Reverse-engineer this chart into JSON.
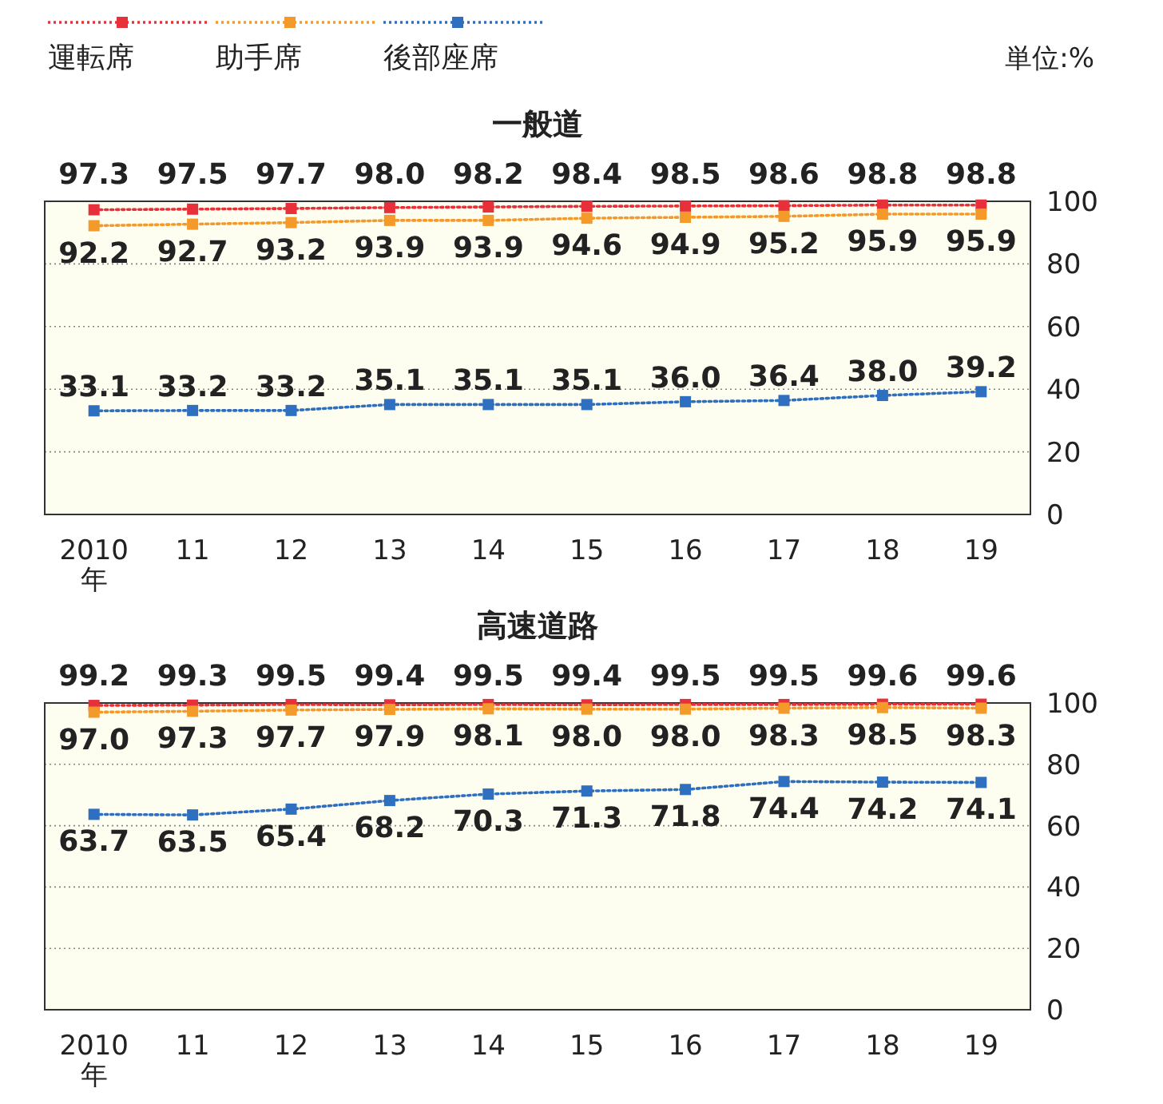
{
  "chart_data": [
    {
      "type": "line",
      "title": "一般道",
      "annotations": [
        "単位:%"
      ],
      "categories": [
        "2010\n年",
        "11",
        "12",
        "13",
        "14",
        "15",
        "16",
        "17",
        "18",
        "19"
      ],
      "ylim": [
        0,
        100
      ],
      "yticks": [
        0,
        20,
        40,
        60,
        80,
        100
      ],
      "grid": "y",
      "legend": "top left",
      "marker": "square",
      "line_style": "dotted",
      "series": [
        {
          "name": "運転席",
          "color": "#e8303a",
          "values": [
            97.3,
            97.5,
            97.7,
            98.0,
            98.2,
            98.4,
            98.5,
            98.6,
            98.8,
            98.8
          ],
          "value_labels": [
            "97.3",
            "97.5",
            "97.7",
            "98.0",
            "98.2",
            "98.4",
            "98.5",
            "98.6",
            "98.8",
            "98.8"
          ]
        },
        {
          "name": "助手席",
          "color": "#f39a2b",
          "values": [
            92.2,
            92.7,
            93.2,
            93.9,
            93.9,
            94.6,
            94.9,
            95.2,
            95.9,
            95.9
          ],
          "value_labels": [
            "92.2",
            "92.7",
            "93.2",
            "93.9",
            "93.9",
            "94.6",
            "94.9",
            "95.2",
            "95.9",
            "95.9"
          ]
        },
        {
          "name": "後部座席",
          "color": "#2f6fbf",
          "values": [
            33.1,
            33.2,
            33.2,
            35.1,
            35.1,
            35.1,
            36.0,
            36.4,
            38.0,
            39.2
          ],
          "value_labels": [
            "33.1",
            "33.2",
            "33.2",
            "35.1",
            "35.1",
            "35.1",
            "36.0",
            "36.4",
            "38.0",
            "39.2"
          ]
        }
      ]
    },
    {
      "type": "line",
      "title": "高速道路",
      "categories": [
        "2010\n年",
        "11",
        "12",
        "13",
        "14",
        "15",
        "16",
        "17",
        "18",
        "19"
      ],
      "ylim": [
        0,
        100
      ],
      "yticks": [
        0,
        20,
        40,
        60,
        80,
        100
      ],
      "grid": "y",
      "marker": "square",
      "line_style": "dotted",
      "series": [
        {
          "color": "#e8303a",
          "values": [
            99.2,
            99.3,
            99.5,
            99.4,
            99.5,
            99.4,
            99.5,
            99.5,
            99.6,
            99.6
          ],
          "value_labels": [
            "99.2",
            "99.3",
            "99.5",
            "99.4",
            "99.5",
            "99.4",
            "99.5",
            "99.5",
            "99.6",
            "99.6"
          ]
        },
        {
          "color": "#f39a2b",
          "values": [
            97.0,
            97.3,
            97.7,
            97.9,
            98.1,
            98.0,
            98.0,
            98.3,
            98.5,
            98.3
          ],
          "value_labels": [
            "97.0",
            "97.3",
            "97.7",
            "97.9",
            "98.1",
            "98.0",
            "98.0",
            "98.3",
            "98.5",
            "98.3"
          ]
        },
        {
          "color": "#2f6fbf",
          "values": [
            63.7,
            63.5,
            65.4,
            68.2,
            70.3,
            71.3,
            71.8,
            74.4,
            74.2,
            74.1
          ],
          "value_labels": [
            "63.7",
            "63.5",
            "65.4",
            "68.2",
            "70.3",
            "71.3",
            "71.8",
            "74.4",
            "74.2",
            "74.1"
          ]
        }
      ]
    }
  ]
}
